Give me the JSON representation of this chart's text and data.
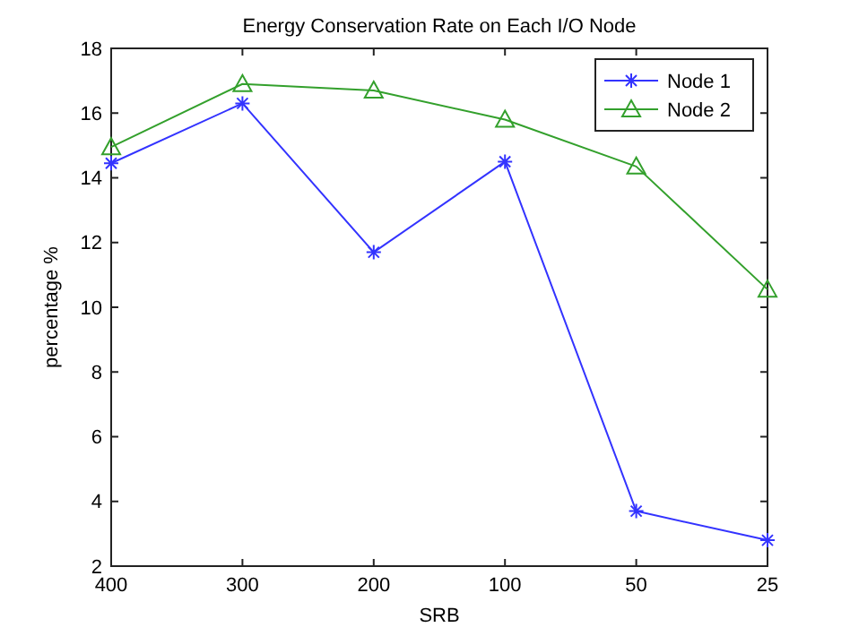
{
  "chart_data": {
    "type": "line",
    "title": "Energy Conservation Rate on Each I/O Node",
    "xlabel": "SRB",
    "ylabel": "percentage %",
    "categories": [
      "400",
      "300",
      "200",
      "100",
      "50",
      "25"
    ],
    "series": [
      {
        "name": "Node 1",
        "color": "#3333ff",
        "marker": "cross",
        "values": [
          14.45,
          16.3,
          11.7,
          14.5,
          3.7,
          2.8
        ]
      },
      {
        "name": "Node 2",
        "color": "#33a02c",
        "marker": "triangle",
        "values": [
          14.95,
          16.9,
          16.7,
          15.8,
          14.35,
          10.55
        ]
      }
    ],
    "ylim": [
      2,
      18
    ],
    "yticks": [
      2,
      4,
      6,
      8,
      10,
      12,
      14,
      16,
      18
    ],
    "grid": false,
    "legend": "top right"
  }
}
